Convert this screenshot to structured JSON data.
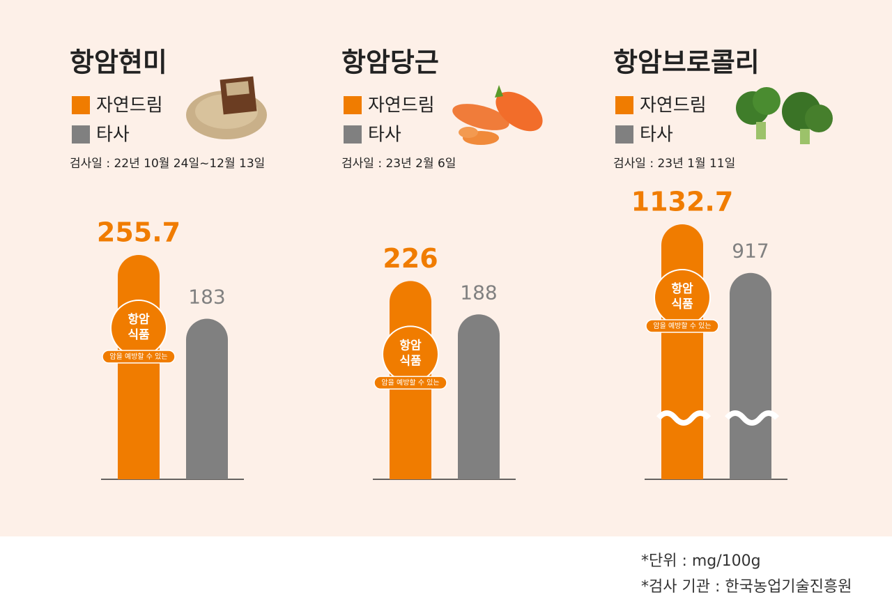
{
  "chart_data": [
    {
      "type": "bar",
      "title": "항암현미",
      "subtitle": "검사일 : 22년 10월 24일~12월 13일",
      "series": [
        {
          "name": "자연드림",
          "color": "#f07c00",
          "values": [
            255.7
          ]
        },
        {
          "name": "타사",
          "color": "#808080",
          "values": [
            183
          ]
        }
      ]
    },
    {
      "type": "bar",
      "title": "항암당근",
      "subtitle": "검사일 : 23년 2월 6일",
      "series": [
        {
          "name": "자연드림",
          "color": "#f07c00",
          "values": [
            226
          ]
        },
        {
          "name": "타사",
          "color": "#808080",
          "values": [
            188
          ]
        }
      ]
    },
    {
      "type": "bar",
      "title": "항암브로콜리",
      "subtitle": "검사일 : 23년 1월 11일",
      "broken_axis": true,
      "series": [
        {
          "name": "자연드림",
          "color": "#f07c00",
          "values": [
            1132.7
          ]
        },
        {
          "name": "타사",
          "color": "#808080",
          "values": [
            917
          ]
        }
      ]
    }
  ],
  "badge": {
    "line1": "항암",
    "line2": "식품",
    "caption": "암을 예방할 수 있는"
  },
  "notes": [
    "*단위 : mg/100g",
    "*검사 기관 : 한국농업기술진흥원"
  ]
}
